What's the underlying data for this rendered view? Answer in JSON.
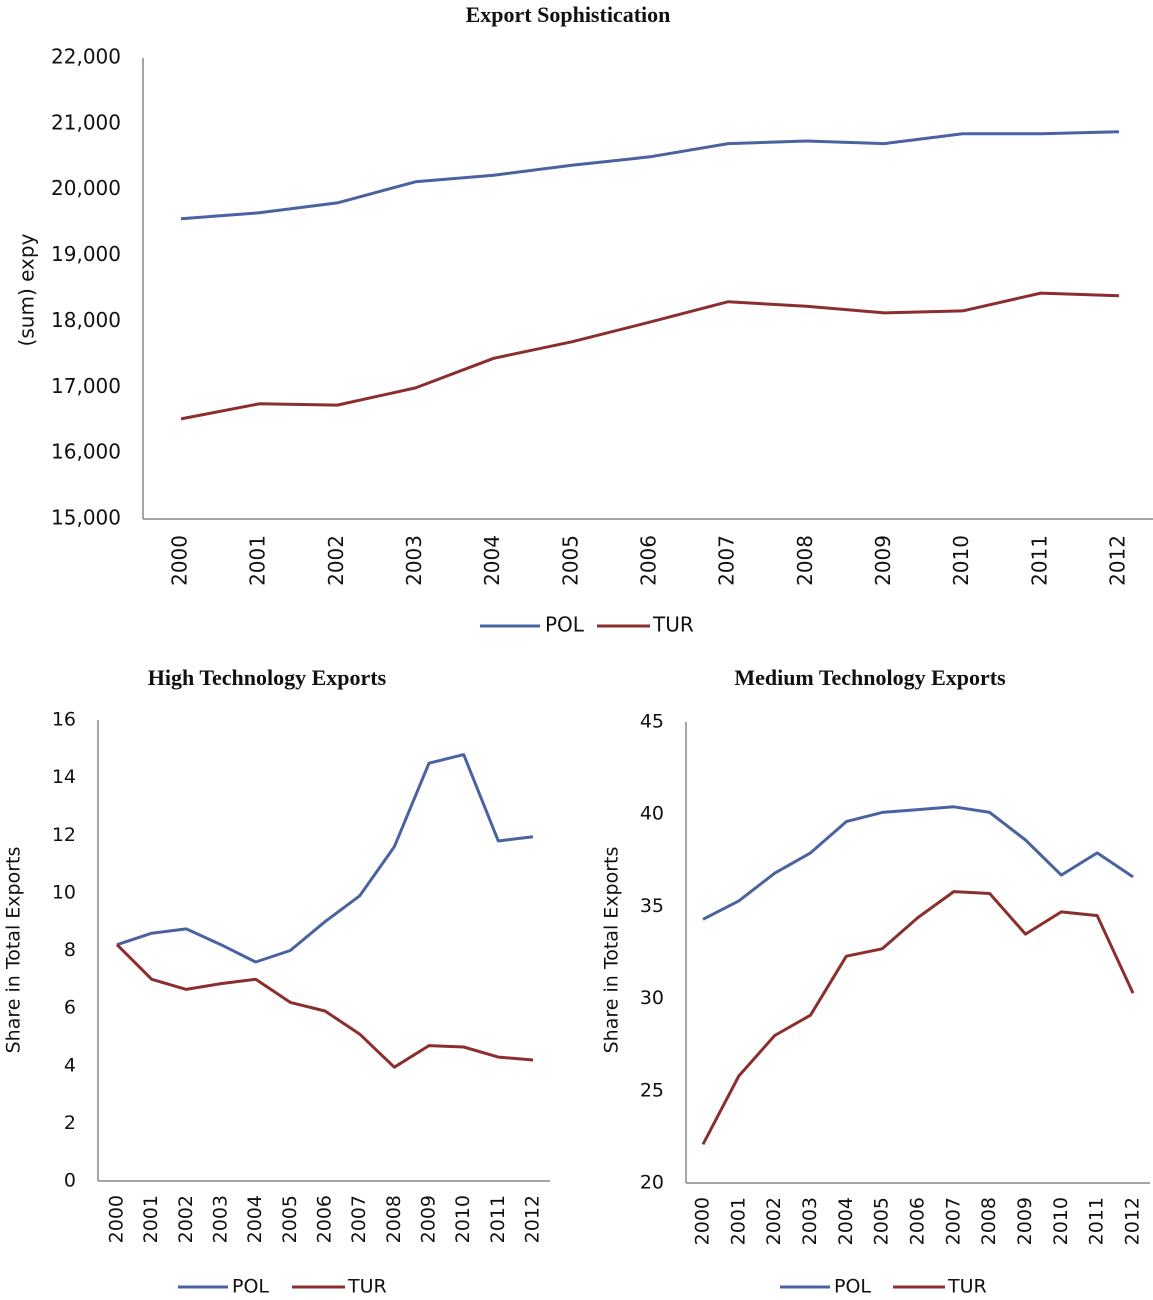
{
  "chart_data": [
    {
      "type": "line",
      "title": "Export Sophistication",
      "y_label": "(sum) expy",
      "categories": [
        "2000",
        "2001",
        "2002",
        "2003",
        "2004",
        "2005",
        "2006",
        "2007",
        "2008",
        "2009",
        "2010",
        "2011",
        "2012"
      ],
      "series": [
        {
          "name": "POL",
          "color": "#4a62a0",
          "values": [
            19560,
            19650,
            19800,
            20120,
            20220,
            20370,
            20500,
            20700,
            20740,
            20700,
            20850,
            20850,
            20880
          ]
        },
        {
          "name": "TUR",
          "color": "#8b2e2e",
          "values": [
            16520,
            16750,
            16730,
            16990,
            17440,
            17690,
            17990,
            18300,
            18230,
            18130,
            18160,
            18430,
            18390
          ]
        }
      ],
      "ylim": [
        15000,
        22000
      ],
      "yticks": [
        {
          "value": 15000,
          "label": "15,000"
        },
        {
          "value": 16000,
          "label": "16,000"
        },
        {
          "value": 17000,
          "label": "17,000"
        },
        {
          "value": 18000,
          "label": "18,000"
        },
        {
          "value": 19000,
          "label": "19,000"
        },
        {
          "value": 20000,
          "label": "20,000"
        },
        {
          "value": 21000,
          "label": "21,000"
        },
        {
          "value": 22000,
          "label": "22,000"
        }
      ],
      "legend": "bottom"
    },
    {
      "type": "line",
      "title": "High Technology Exports",
      "y_label": "Share in Total Exports",
      "categories": [
        "2000",
        "2001",
        "2002",
        "2003",
        "2004",
        "2005",
        "2006",
        "2007",
        "2008",
        "2009",
        "2010",
        "2011",
        "2012"
      ],
      "series": [
        {
          "name": "POL",
          "color": "#4a62a0",
          "values": [
            8.2,
            8.6,
            8.75,
            8.2,
            7.6,
            8.0,
            9.0,
            9.9,
            11.6,
            14.5,
            14.8,
            11.8,
            11.95
          ]
        },
        {
          "name": "TUR",
          "color": "#8b2e2e",
          "values": [
            8.2,
            7.0,
            6.65,
            6.85,
            7.0,
            6.2,
            5.9,
            5.1,
            3.95,
            4.7,
            4.65,
            4.3,
            4.2
          ]
        }
      ],
      "ylim": [
        0,
        16
      ],
      "yticks": [
        0,
        2,
        4,
        6,
        8,
        10,
        12,
        14,
        16
      ],
      "legend": "bottom"
    },
    {
      "type": "line",
      "title": "Medium Technology Exports",
      "y_label": "Share in Total Exports",
      "categories": [
        "2000",
        "2001",
        "2002",
        "2003",
        "2004",
        "2005",
        "2006",
        "2007",
        "2008",
        "2009",
        "2010",
        "2011",
        "2012"
      ],
      "series": [
        {
          "name": "POL",
          "color": "#4a62a0",
          "values": [
            34.3,
            35.3,
            36.8,
            37.9,
            39.6,
            40.1,
            40.25,
            40.4,
            40.1,
            38.6,
            36.7,
            37.9,
            36.6
          ]
        },
        {
          "name": "TUR",
          "color": "#8b2e2e",
          "values": [
            22.1,
            25.8,
            28.0,
            29.1,
            32.3,
            32.7,
            34.4,
            35.8,
            35.7,
            33.5,
            34.7,
            34.5,
            30.3
          ]
        }
      ],
      "ylim": [
        20,
        45
      ],
      "yticks": [
        20,
        25,
        30,
        35,
        40,
        45
      ],
      "legend": "bottom"
    }
  ]
}
